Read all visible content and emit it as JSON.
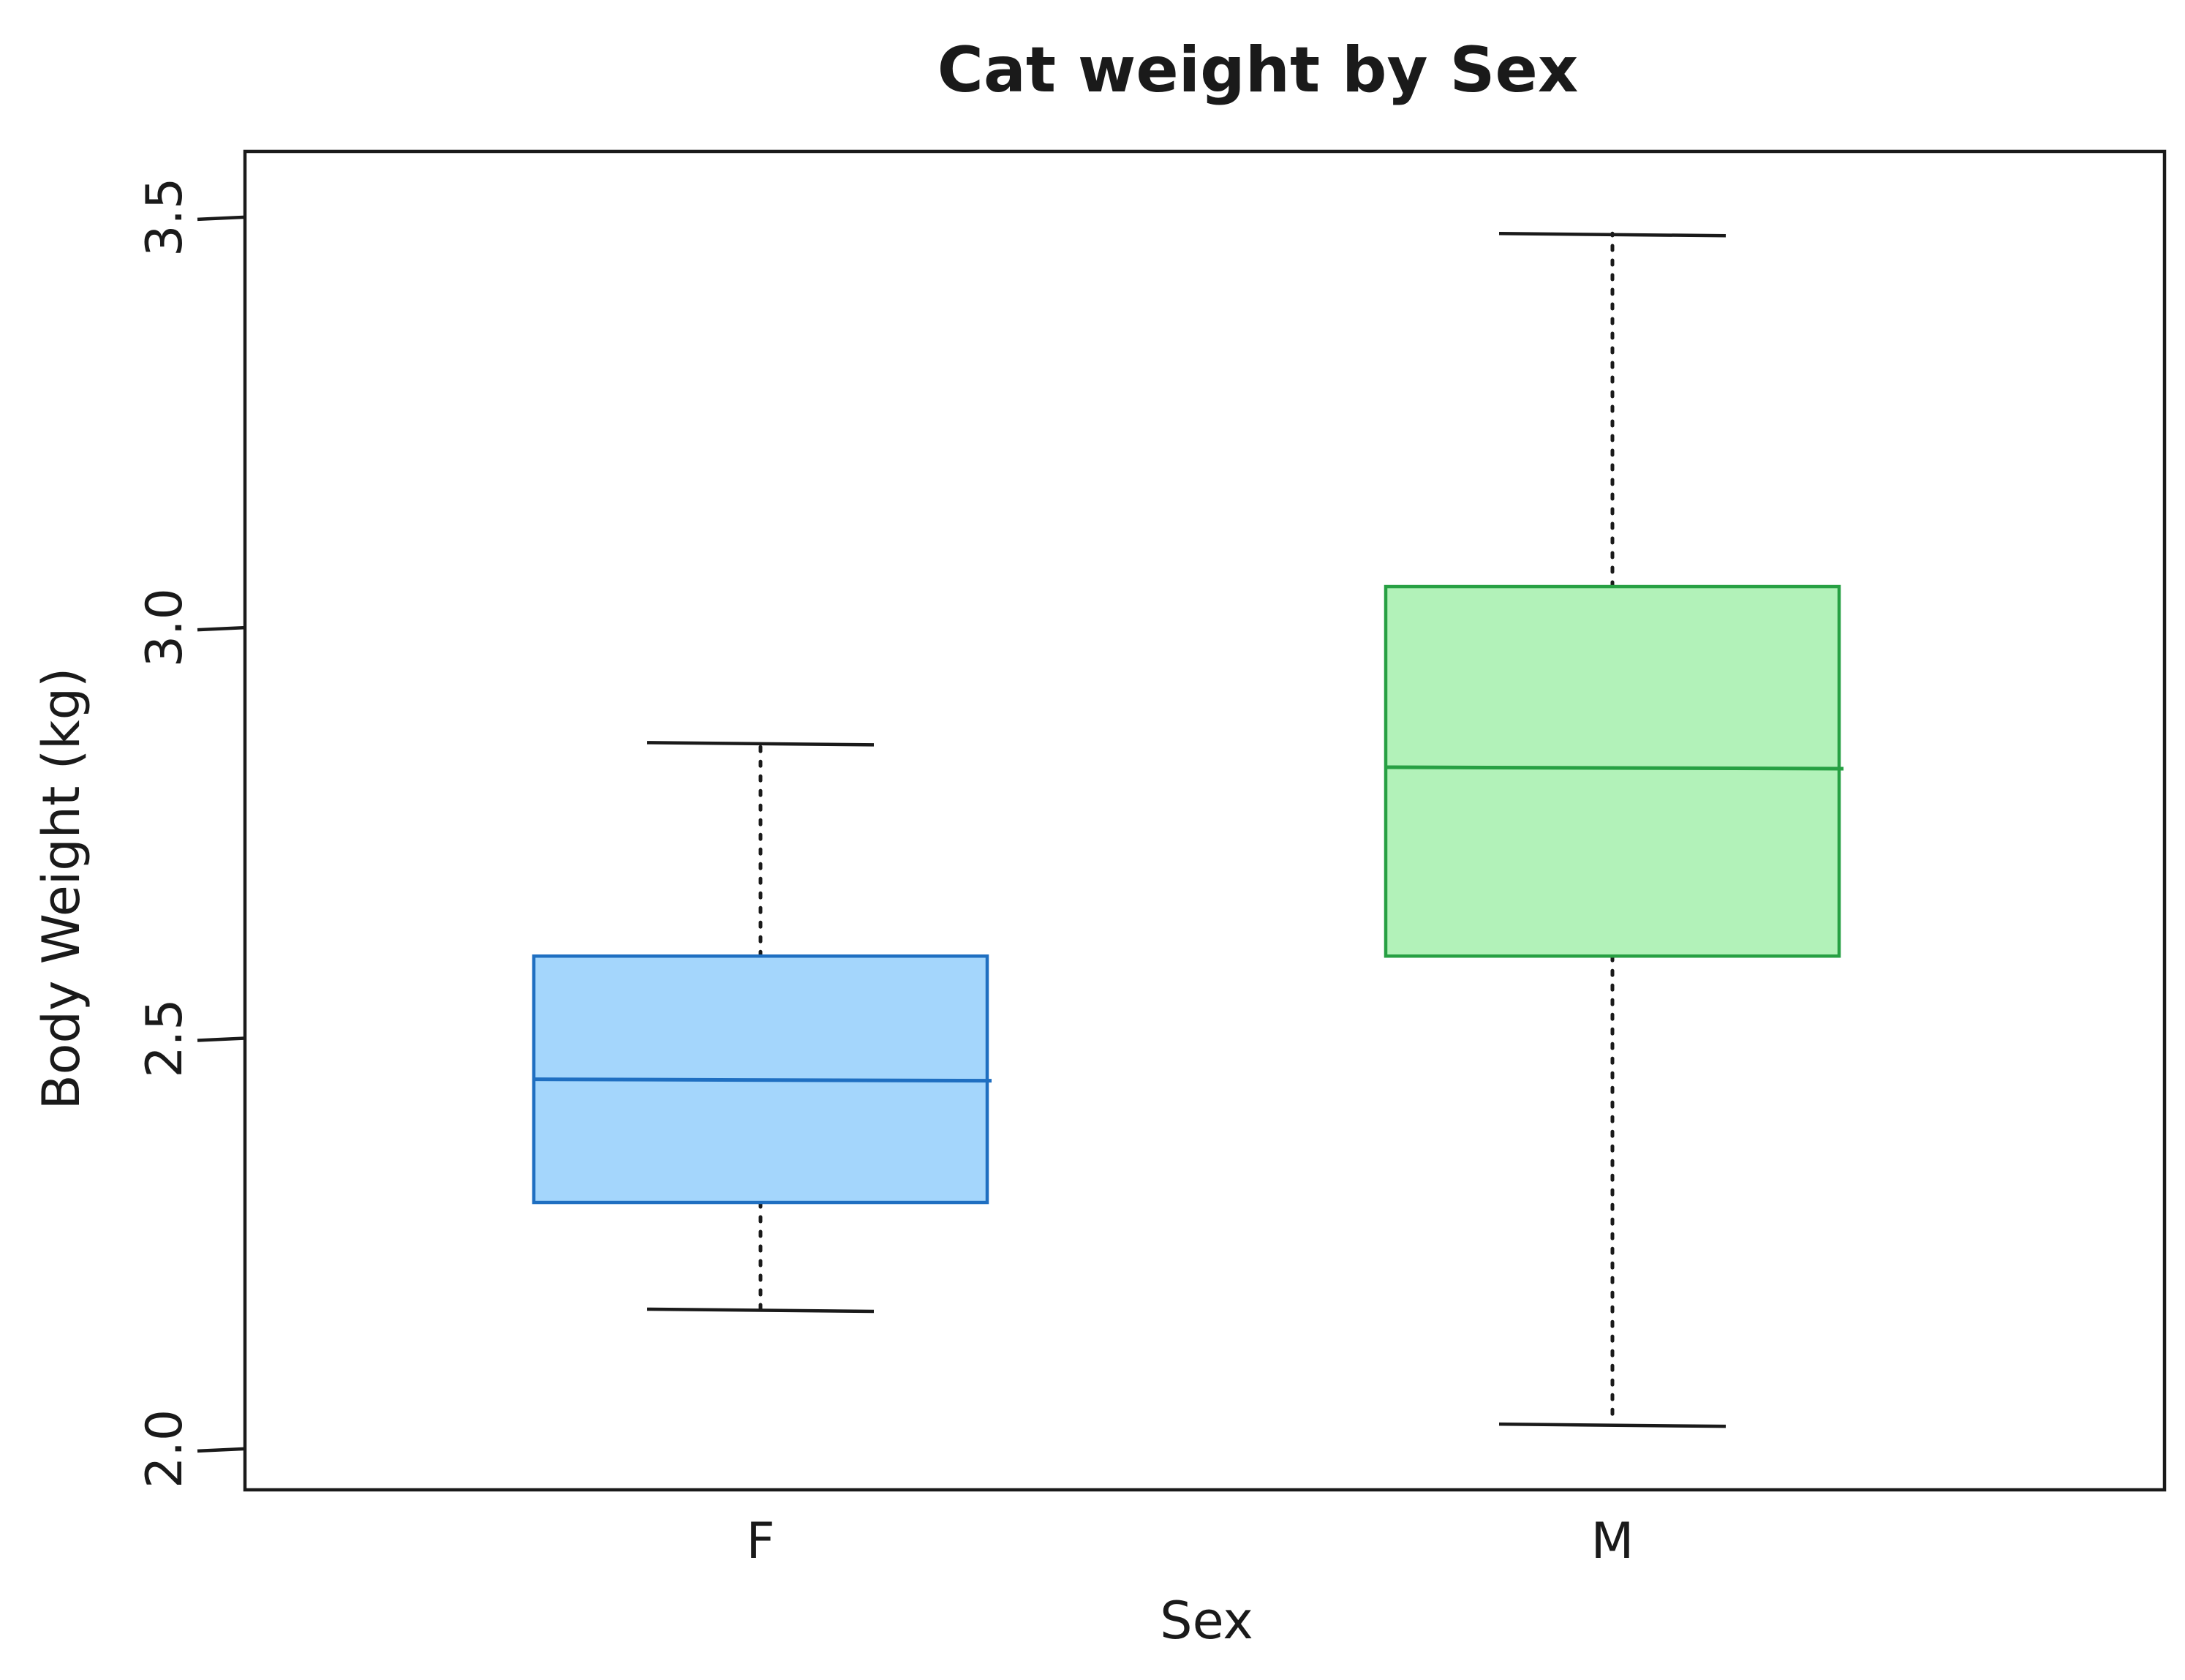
{
  "chart_data": {
    "type": "box",
    "title": "Cat weight by Sex",
    "xlabel": "Sex",
    "ylabel": "Body Weight (kg)",
    "categories": [
      "F",
      "M"
    ],
    "ylim": [
      1.95,
      3.58
    ],
    "yticks": [
      2.0,
      2.5,
      3.0,
      3.5
    ],
    "ytick_labels": [
      "2.0",
      "2.5",
      "3.0",
      "3.5"
    ],
    "grid": false,
    "legend": "none",
    "boxes": [
      {
        "category": "F",
        "whisker_low": 2.17,
        "q1": 2.3,
        "median": 2.45,
        "q3": 2.6,
        "whisker_high": 2.86,
        "fill": "#a4d6fc",
        "stroke": "#1f6fc1"
      },
      {
        "category": "M",
        "whisker_low": 2.03,
        "q1": 2.6,
        "median": 2.83,
        "q3": 3.05,
        "whisker_high": 3.48,
        "fill": "#b2f2b9",
        "stroke": "#27a043"
      }
    ]
  }
}
